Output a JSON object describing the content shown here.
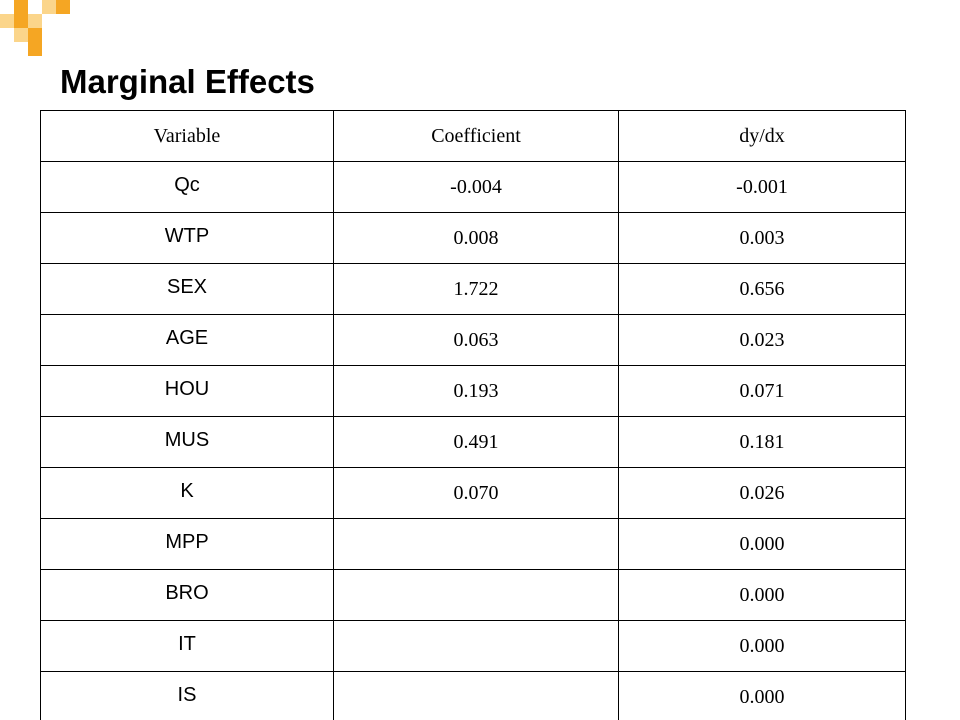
{
  "slide": {
    "title": "Marginal Effects"
  },
  "colors": {
    "accent_orange": "#F5A623",
    "accent_light": "#FBD58A"
  },
  "table": {
    "headers": [
      "Variable",
      "Coefficient",
      "dy/dx"
    ],
    "rows": [
      {
        "variable": "Qc",
        "coefficient": "-0.004",
        "dydx": "-0.001"
      },
      {
        "variable": "WTP",
        "coefficient": "0.008",
        "dydx": "0.003"
      },
      {
        "variable": "SEX",
        "coefficient": "1.722",
        "dydx": "0.656"
      },
      {
        "variable": "AGE",
        "coefficient": "0.063",
        "dydx": "0.023"
      },
      {
        "variable": "HOU",
        "coefficient": "0.193",
        "dydx": "0.071"
      },
      {
        "variable": "MUS",
        "coefficient": "0.491",
        "dydx": "0.181"
      },
      {
        "variable": "K",
        "coefficient": "0.070",
        "dydx": "0.026"
      },
      {
        "variable": "MPP",
        "coefficient": "",
        "dydx": "0.000"
      },
      {
        "variable": "BRO",
        "coefficient": "",
        "dydx": "0.000"
      },
      {
        "variable": "IT",
        "coefficient": "",
        "dydx": "0.000"
      },
      {
        "variable": "IS",
        "coefficient": "",
        "dydx": "0.000"
      }
    ]
  }
}
